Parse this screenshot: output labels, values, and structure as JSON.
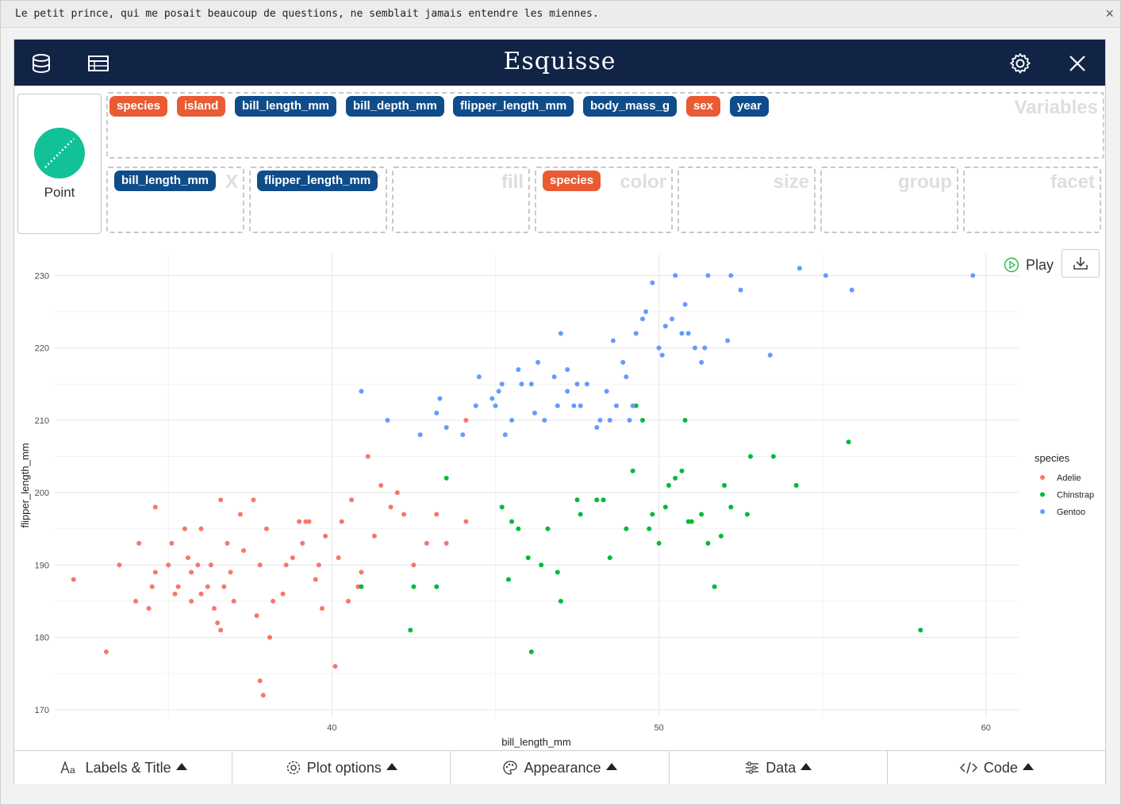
{
  "banner": {
    "message": "Le petit prince, qui me posait beaucoup de questions, ne semblait jamais entendre les miennes.",
    "close_glyph": "×"
  },
  "header": {
    "title": "Esquisse",
    "close_glyph": "✕"
  },
  "geom": {
    "label": "Point",
    "color": "#12c197"
  },
  "variables": {
    "zone_label": "Variables",
    "items": [
      {
        "name": "species",
        "kind": "categorical"
      },
      {
        "name": "island",
        "kind": "categorical"
      },
      {
        "name": "bill_length_mm",
        "kind": "numeric"
      },
      {
        "name": "bill_depth_mm",
        "kind": "numeric"
      },
      {
        "name": "flipper_length_mm",
        "kind": "numeric"
      },
      {
        "name": "body_mass_g",
        "kind": "numeric"
      },
      {
        "name": "sex",
        "kind": "categorical"
      },
      {
        "name": "year",
        "kind": "numeric"
      }
    ]
  },
  "aesthetics": [
    {
      "label": "X",
      "value": "bill_length_mm",
      "kind": "numeric"
    },
    {
      "label": "Y",
      "value": "flipper_length_mm",
      "kind": "numeric"
    },
    {
      "label": "fill",
      "value": null
    },
    {
      "label": "color",
      "value": "species",
      "kind": "categorical"
    },
    {
      "label": "size",
      "value": null
    },
    {
      "label": "group",
      "value": null
    },
    {
      "label": "facet",
      "value": null
    }
  ],
  "plot_controls": {
    "play_label": "Play"
  },
  "tabs": [
    {
      "label": "Labels & Title",
      "icon": "text-aa-icon"
    },
    {
      "label": "Plot options",
      "icon": "gear-icon"
    },
    {
      "label": "Appearance",
      "icon": "palette-icon"
    },
    {
      "label": "Data",
      "icon": "sliders-icon"
    },
    {
      "label": "Code",
      "icon": "code-icon"
    }
  ],
  "chart_data": {
    "type": "scatter",
    "xlabel": "bill_length_mm",
    "ylabel": "flipper_length_mm",
    "xlim": [
      31.5,
      61.0
    ],
    "ylim": [
      169,
      233
    ],
    "xticks": [
      40,
      50,
      60
    ],
    "yticks": [
      170,
      180,
      190,
      200,
      210,
      220,
      230
    ],
    "grid": true,
    "legend": {
      "title": "species",
      "position": "right"
    },
    "series": [
      {
        "name": "Adelie",
        "color": "#f8766d",
        "points": [
          [
            32.1,
            188
          ],
          [
            33.1,
            178
          ],
          [
            33.5,
            190
          ],
          [
            34.0,
            185
          ],
          [
            34.1,
            193
          ],
          [
            34.4,
            184
          ],
          [
            34.5,
            187
          ],
          [
            34.6,
            198
          ],
          [
            34.6,
            189
          ],
          [
            35.0,
            190
          ],
          [
            35.1,
            193
          ],
          [
            35.2,
            186
          ],
          [
            35.3,
            187
          ],
          [
            35.5,
            195
          ],
          [
            35.6,
            191
          ],
          [
            35.7,
            185
          ],
          [
            35.7,
            189
          ],
          [
            35.9,
            190
          ],
          [
            36.0,
            186
          ],
          [
            36.0,
            195
          ],
          [
            36.2,
            187
          ],
          [
            36.3,
            190
          ],
          [
            36.4,
            184
          ],
          [
            36.5,
            182
          ],
          [
            36.6,
            181
          ],
          [
            36.7,
            187
          ],
          [
            36.8,
            193
          ],
          [
            36.9,
            189
          ],
          [
            37.0,
            185
          ],
          [
            37.2,
            197
          ],
          [
            37.3,
            192
          ],
          [
            37.6,
            199
          ],
          [
            37.7,
            183
          ],
          [
            37.8,
            174
          ],
          [
            37.9,
            172
          ],
          [
            38.0,
            195
          ],
          [
            38.1,
            180
          ],
          [
            38.2,
            185
          ],
          [
            38.6,
            190
          ],
          [
            38.8,
            191
          ],
          [
            39.0,
            196
          ],
          [
            39.2,
            196
          ],
          [
            39.5,
            188
          ],
          [
            39.6,
            190
          ],
          [
            39.7,
            184
          ],
          [
            39.8,
            194
          ],
          [
            40.1,
            176
          ],
          [
            40.2,
            191
          ],
          [
            40.3,
            196
          ],
          [
            40.5,
            185
          ],
          [
            40.6,
            199
          ],
          [
            40.8,
            187
          ],
          [
            40.9,
            189
          ],
          [
            41.1,
            205
          ],
          [
            41.3,
            194
          ],
          [
            41.5,
            201
          ],
          [
            41.8,
            198
          ],
          [
            42.0,
            200
          ],
          [
            42.2,
            197
          ],
          [
            42.5,
            190
          ],
          [
            42.9,
            193
          ],
          [
            43.2,
            197
          ],
          [
            43.5,
            193
          ],
          [
            44.1,
            210
          ],
          [
            44.1,
            196
          ],
          [
            38.5,
            186
          ],
          [
            39.1,
            193
          ],
          [
            37.8,
            190
          ],
          [
            36.6,
            199
          ],
          [
            39.3,
            196
          ]
        ]
      },
      {
        "name": "Chinstrap",
        "color": "#00ba38",
        "points": [
          [
            40.9,
            187
          ],
          [
            42.4,
            181
          ],
          [
            42.5,
            187
          ],
          [
            43.2,
            187
          ],
          [
            43.5,
            202
          ],
          [
            45.2,
            198
          ],
          [
            45.4,
            188
          ],
          [
            45.7,
            195
          ],
          [
            46.0,
            191
          ],
          [
            46.1,
            178
          ],
          [
            46.4,
            190
          ],
          [
            46.9,
            189
          ],
          [
            47.0,
            185
          ],
          [
            47.5,
            199
          ],
          [
            48.1,
            199
          ],
          [
            48.5,
            191
          ],
          [
            49.0,
            195
          ],
          [
            49.3,
            212
          ],
          [
            49.5,
            210
          ],
          [
            49.7,
            195
          ],
          [
            50.0,
            193
          ],
          [
            50.2,
            198
          ],
          [
            50.5,
            202
          ],
          [
            50.8,
            210
          ],
          [
            50.9,
            196
          ],
          [
            51.3,
            197
          ],
          [
            51.5,
            193
          ],
          [
            51.7,
            187
          ],
          [
            52.0,
            201
          ],
          [
            52.2,
            198
          ],
          [
            52.7,
            197
          ],
          [
            53.5,
            205
          ],
          [
            54.2,
            201
          ],
          [
            55.8,
            207
          ],
          [
            58.0,
            181
          ],
          [
            45.5,
            196
          ],
          [
            46.6,
            195
          ],
          [
            47.6,
            197
          ],
          [
            48.3,
            199
          ],
          [
            49.2,
            203
          ],
          [
            49.8,
            197
          ],
          [
            50.3,
            201
          ],
          [
            50.7,
            203
          ],
          [
            51.0,
            196
          ],
          [
            51.9,
            194
          ],
          [
            52.8,
            205
          ]
        ]
      },
      {
        "name": "Gentoo",
        "color": "#619cff",
        "points": [
          [
            40.9,
            214
          ],
          [
            41.7,
            210
          ],
          [
            42.7,
            208
          ],
          [
            43.2,
            211
          ],
          [
            43.5,
            209
          ],
          [
            44.0,
            208
          ],
          [
            44.4,
            212
          ],
          [
            44.9,
            213
          ],
          [
            45.0,
            212
          ],
          [
            45.2,
            215
          ],
          [
            45.3,
            208
          ],
          [
            45.5,
            210
          ],
          [
            45.8,
            215
          ],
          [
            46.1,
            215
          ],
          [
            46.2,
            211
          ],
          [
            46.5,
            210
          ],
          [
            46.8,
            216
          ],
          [
            47.0,
            222
          ],
          [
            47.2,
            214
          ],
          [
            47.4,
            212
          ],
          [
            47.6,
            212
          ],
          [
            47.8,
            215
          ],
          [
            48.1,
            209
          ],
          [
            48.2,
            210
          ],
          [
            48.4,
            214
          ],
          [
            48.6,
            221
          ],
          [
            48.7,
            212
          ],
          [
            49.0,
            216
          ],
          [
            49.1,
            210
          ],
          [
            49.2,
            212
          ],
          [
            49.5,
            224
          ],
          [
            49.6,
            225
          ],
          [
            49.8,
            229
          ],
          [
            50.0,
            220
          ],
          [
            50.2,
            223
          ],
          [
            50.4,
            224
          ],
          [
            50.5,
            230
          ],
          [
            50.7,
            222
          ],
          [
            50.8,
            226
          ],
          [
            51.1,
            220
          ],
          [
            51.3,
            218
          ],
          [
            51.5,
            230
          ],
          [
            52.1,
            221
          ],
          [
            52.2,
            230
          ],
          [
            52.5,
            228
          ],
          [
            53.4,
            219
          ],
          [
            54.3,
            231
          ],
          [
            55.1,
            230
          ],
          [
            55.9,
            228
          ],
          [
            59.6,
            230
          ],
          [
            43.3,
            213
          ],
          [
            45.1,
            214
          ],
          [
            46.3,
            218
          ],
          [
            46.9,
            212
          ],
          [
            47.5,
            215
          ],
          [
            48.5,
            210
          ],
          [
            49.3,
            222
          ],
          [
            50.1,
            219
          ],
          [
            50.9,
            222
          ],
          [
            51.4,
            220
          ],
          [
            48.9,
            218
          ],
          [
            47.2,
            217
          ],
          [
            45.7,
            217
          ],
          [
            44.5,
            216
          ]
        ]
      }
    ]
  }
}
